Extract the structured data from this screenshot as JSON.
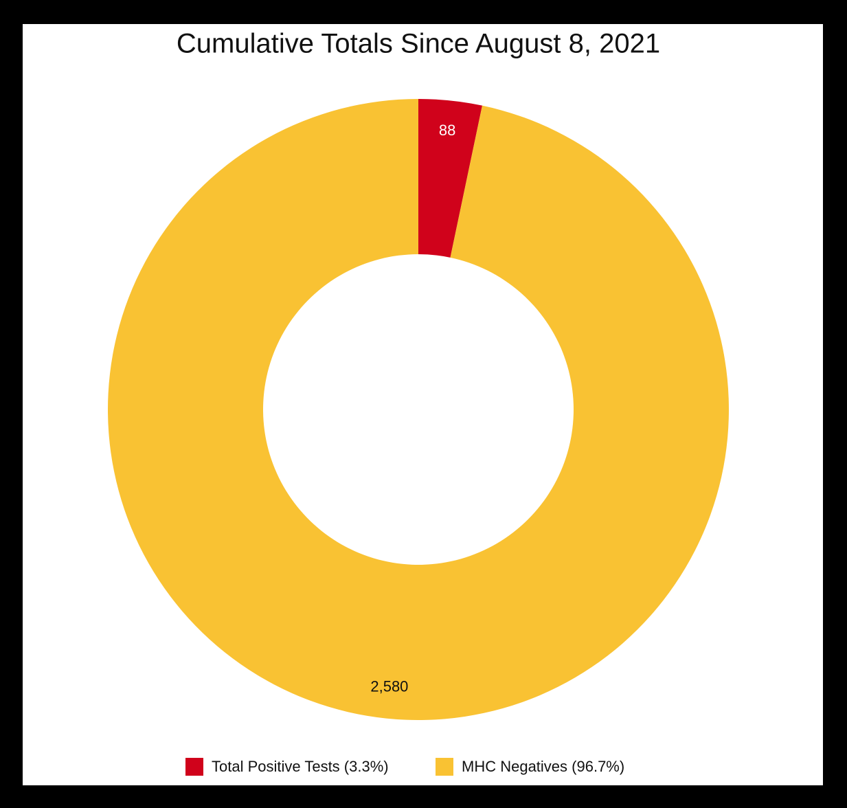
{
  "chart_data": {
    "type": "donut",
    "title": "Cumulative Totals Since August 8, 2021",
    "categories": [
      "Total Positive Tests (3.3%)",
      "MHC Negatives (96.7%)"
    ],
    "values": [
      88,
      2580
    ],
    "value_labels": [
      "88",
      "2,580"
    ],
    "colors": [
      "#d0021b",
      "#f9c233"
    ],
    "legend": "bottom"
  }
}
